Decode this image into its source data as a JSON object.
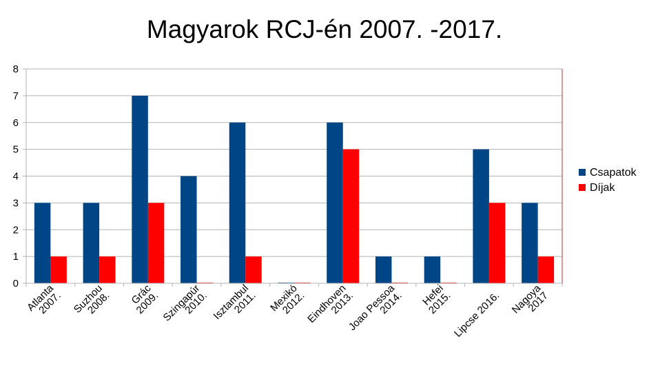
{
  "chart_data": {
    "type": "bar",
    "title": "Magyarok RCJ-én 2007. -2017.",
    "categories": [
      [
        "Atlanta",
        "2007."
      ],
      [
        "Suzhou",
        "2008."
      ],
      [
        "Grác",
        "2009."
      ],
      [
        "Szingapúr",
        "2010."
      ],
      [
        "Isztambul",
        "2011."
      ],
      [
        "Mexikó",
        "2012."
      ],
      [
        "Eindhoven",
        "2013."
      ],
      [
        "Joao Pessoa",
        "2014."
      ],
      [
        "Hefei",
        "2015."
      ],
      [
        "Lipcse 2016."
      ],
      [
        "Nagoya",
        "2017"
      ]
    ],
    "series": [
      {
        "name": "Csapatok",
        "color": "#004586",
        "values": [
          3,
          3,
          7,
          4,
          6,
          0,
          6,
          1,
          1,
          5,
          3
        ]
      },
      {
        "name": "Díjak",
        "color": "#ff0000",
        "values": [
          1,
          1,
          3,
          0,
          1,
          0,
          5,
          0,
          0,
          3,
          1
        ]
      }
    ],
    "ylim": [
      0,
      8
    ],
    "yticks": [
      0,
      1,
      2,
      3,
      4,
      5,
      6,
      7,
      8
    ],
    "grid": true,
    "legend_position": "right"
  }
}
